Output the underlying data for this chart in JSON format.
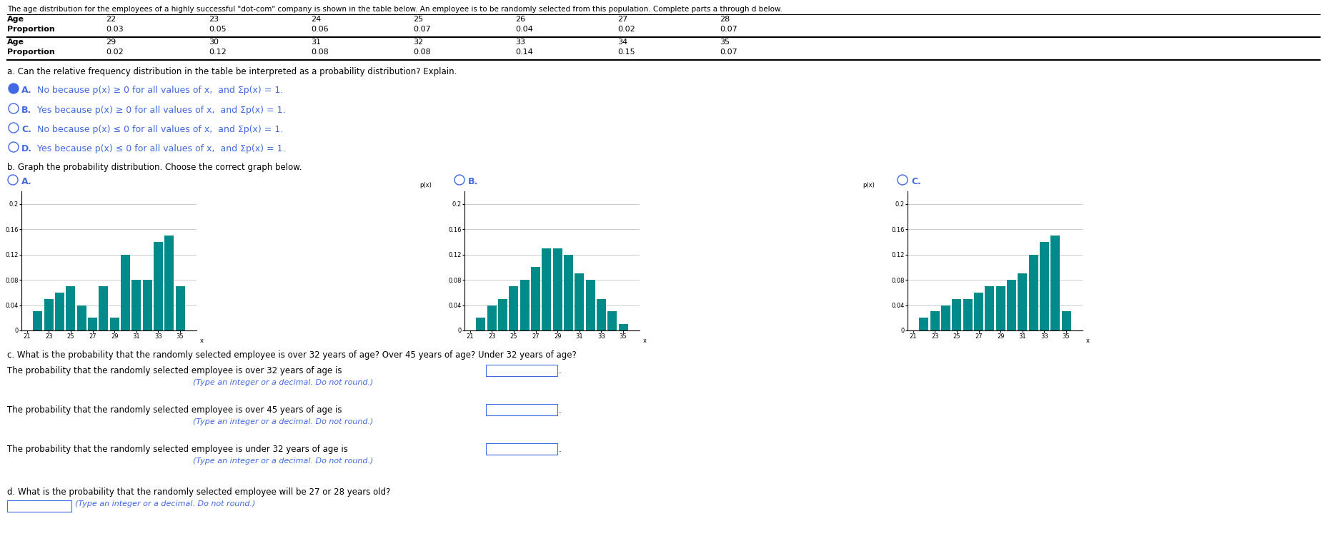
{
  "intro_text": "The age distribution for the employees of a highly successful \"dot-com\" company is shown in the table below. An employee is to be randomly selected from this population. Complete parts a through d below.",
  "ages": [
    22,
    23,
    24,
    25,
    26,
    27,
    28,
    29,
    30,
    31,
    32,
    33,
    34,
    35
  ],
  "proportions_A": [
    0.03,
    0.05,
    0.06,
    0.07,
    0.04,
    0.02,
    0.07,
    0.02,
    0.12,
    0.08,
    0.08,
    0.14,
    0.15,
    0.07
  ],
  "proportions_B": [
    0.02,
    0.04,
    0.05,
    0.07,
    0.08,
    0.1,
    0.13,
    0.13,
    0.12,
    0.09,
    0.08,
    0.05,
    0.03,
    0.01
  ],
  "proportions_C": [
    0.02,
    0.03,
    0.04,
    0.05,
    0.05,
    0.06,
    0.07,
    0.07,
    0.08,
    0.09,
    0.12,
    0.14,
    0.15,
    0.03
  ],
  "table_row1_ages": [
    22,
    23,
    24,
    25,
    26,
    27,
    28
  ],
  "table_row1_props": [
    0.03,
    0.05,
    0.06,
    0.07,
    0.04,
    0.02,
    0.07
  ],
  "table_row2_ages": [
    29,
    30,
    31,
    32,
    33,
    34,
    35
  ],
  "table_row2_props": [
    0.02,
    0.12,
    0.08,
    0.08,
    0.14,
    0.15,
    0.07
  ],
  "part_a_text": "a. Can the relative frequency distribution in the table be interpreted as a probability distribution? Explain.",
  "part_b_text": "b. Graph the probability distribution. Choose the correct graph below.",
  "part_c_text": "c. What is the probability that the randomly selected employee is over 32 years of age? Over 45 years of age? Under 32 years of age?",
  "prob_c1_text": "The probability that the randomly selected employee is over 32 years of age is",
  "prob_c2_text": "The probability that the randomly selected employee is over 45 years of age is",
  "prob_c3_text": "The probability that the randomly selected employee is under 32 years of age is",
  "type_note": "(Type an integer or a decimal. Do not round.)",
  "part_d_text": "d. What is the probability that the randomly selected employee will be 27 or 28 years old?",
  "type_note2": "(Type an integer or a decimal. Do not round.)",
  "bar_color": "#008B8B",
  "radio_color": "#4169E1",
  "text_color_black": "#000000",
  "text_color_blue": "#4169E1",
  "bg_color": "#ffffff",
  "selected_A": true
}
